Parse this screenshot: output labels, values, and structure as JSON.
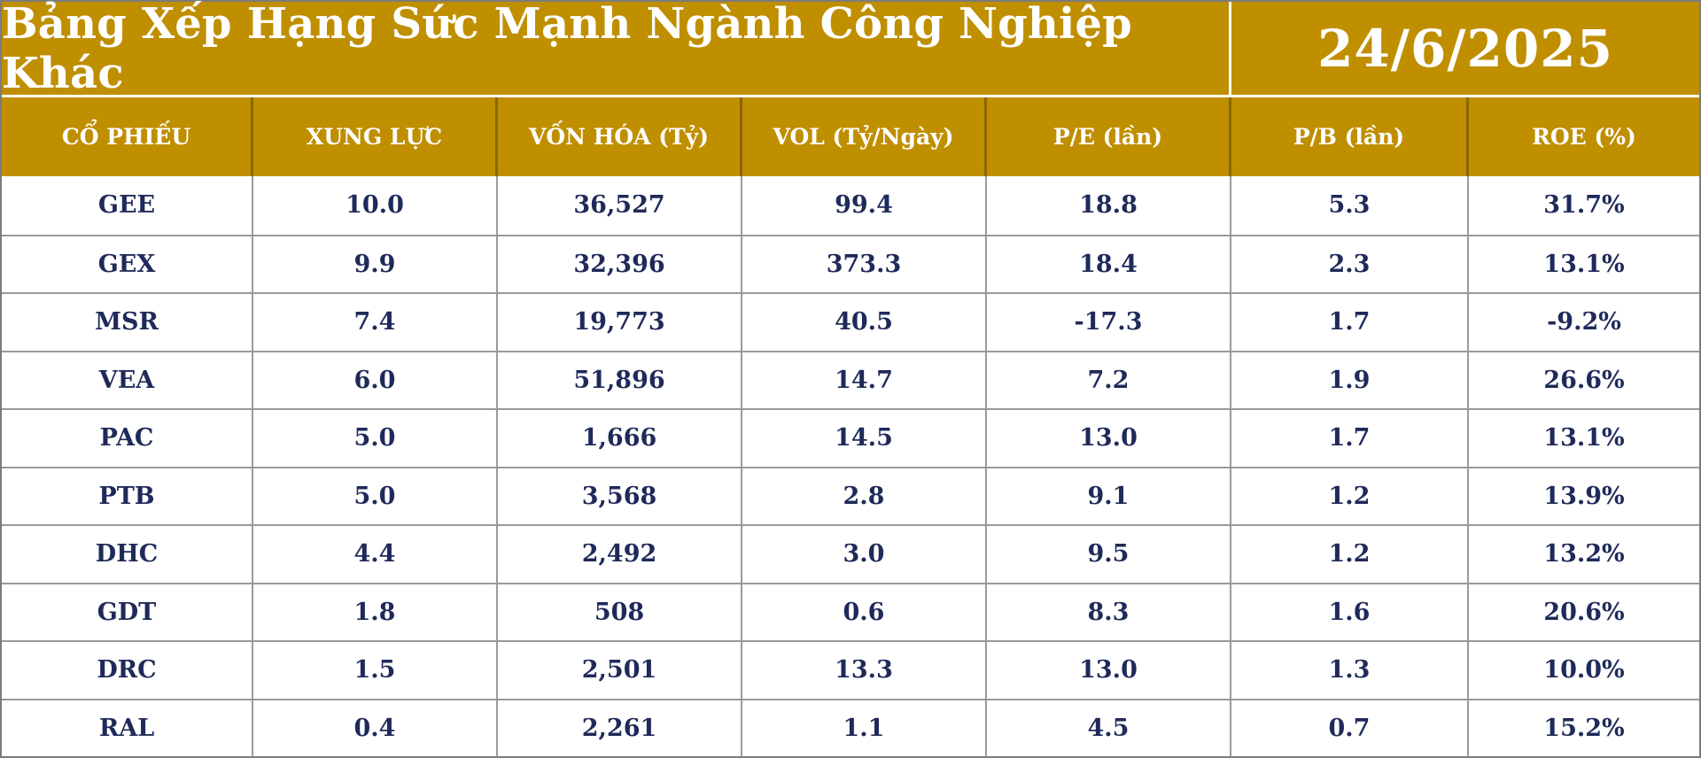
{
  "title": "Bảng Xếp Hạng Sức Mạnh Ngành Công Nghiệp Khác",
  "date": "24/6/2025",
  "columns": [
    "CỔ PHIẾU",
    "XUNG LỰC",
    "VỐN HÓA (Tỷ)",
    "VOL (Tỷ/Ngày)",
    "P/E (lần)",
    "P/B (lần)",
    "ROE (%)"
  ],
  "rows": [
    [
      "GEE",
      "10.0",
      "36,527",
      "99.4",
      "18.8",
      "5.3",
      "31.7%"
    ],
    [
      "GEX",
      "9.9",
      "32,396",
      "373.3",
      "18.4",
      "2.3",
      "13.1%"
    ],
    [
      "MSR",
      "7.4",
      "19,773",
      "40.5",
      "-17.3",
      "1.7",
      "-9.2%"
    ],
    [
      "VEA",
      "6.0",
      "51,896",
      "14.7",
      "7.2",
      "1.9",
      "26.6%"
    ],
    [
      "PAC",
      "5.0",
      "1,666",
      "14.5",
      "13.0",
      "1.7",
      "13.1%"
    ],
    [
      "PTB",
      "5.0",
      "3,568",
      "2.8",
      "9.1",
      "1.2",
      "13.9%"
    ],
    [
      "DHC",
      "4.4",
      "2,492",
      "3.0",
      "9.5",
      "1.2",
      "13.2%"
    ],
    [
      "GDT",
      "1.8",
      "508",
      "0.6",
      "8.3",
      "1.6",
      "20.6%"
    ],
    [
      "DRC",
      "1.5",
      "2,501",
      "13.3",
      "13.0",
      "1.3",
      "10.0%"
    ],
    [
      "RAL",
      "0.4",
      "2,261",
      "1.1",
      "4.5",
      "0.7",
      "15.2%"
    ]
  ],
  "colors": {
    "header_gold": "#bf8f00",
    "text_navy": "#1f2a5a",
    "grid": "#9a9a9a"
  }
}
